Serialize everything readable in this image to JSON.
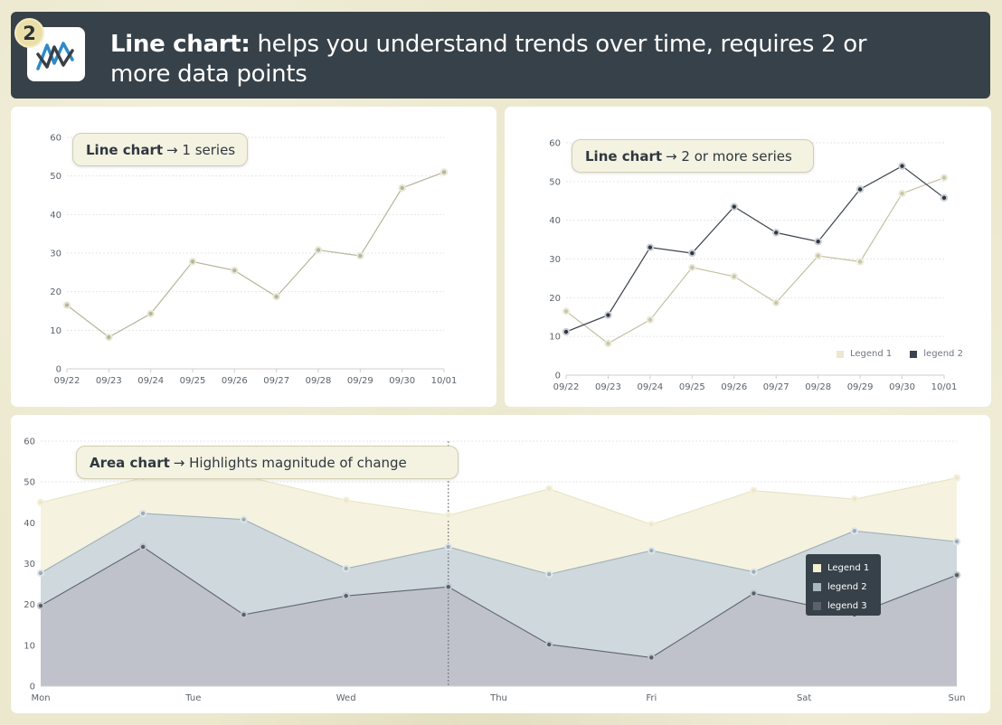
{
  "header": {
    "badge": "2",
    "title_bold": "Line chart:",
    "title_rest": " helps you understand trends over time, requires 2 or more data points"
  },
  "colors": {
    "series1": "#b6b59a",
    "series2": "#3b434c",
    "area1": "#f5f2df",
    "area2": "#cfd8dd",
    "area3": "#bfc2cb"
  },
  "chart_data": [
    {
      "type": "line",
      "label_bold": "Line chart",
      "label_rest": "→ 1 series",
      "categories": [
        "09/22",
        "09/23",
        "09/24",
        "09/25",
        "09/26",
        "09/27",
        "09/28",
        "09/29",
        "09/30",
        "10/01"
      ],
      "series": [
        {
          "values": [
            16.5,
            8.2,
            14.3,
            27.8,
            25.5,
            18.7,
            30.8,
            29.3,
            46.9,
            51.0
          ]
        }
      ],
      "ylim": [
        0,
        60
      ],
      "yticks": [
        0,
        10,
        20,
        30,
        40,
        50,
        60
      ],
      "grid": true
    },
    {
      "type": "line",
      "label_bold": "Line chart",
      "label_rest": "→ 2 or more series",
      "categories": [
        "09/22",
        "09/23",
        "09/24",
        "09/25",
        "09/26",
        "09/27",
        "09/28",
        "09/29",
        "09/30",
        "10/01"
      ],
      "series": [
        {
          "name": "Legend 1",
          "values": [
            16.5,
            8.2,
            14.3,
            27.8,
            25.5,
            18.7,
            30.8,
            29.3,
            46.9,
            51.0
          ]
        },
        {
          "name": "legend 2",
          "values": [
            11.2,
            15.5,
            33.0,
            31.5,
            43.5,
            36.8,
            34.5,
            48.0,
            54.0,
            45.8
          ]
        }
      ],
      "ylim": [
        0,
        60
      ],
      "yticks": [
        0,
        10,
        20,
        30,
        40,
        50,
        60
      ],
      "legend": "bottom-right",
      "grid": true
    },
    {
      "type": "area",
      "label_bold": "Area chart",
      "label_rest": "→ Highlights magnitude of change",
      "categories": [
        "Mon",
        "Tue",
        "Wed",
        "Thu",
        "Fri",
        "Sat",
        "Sun"
      ],
      "x": [
        0,
        0.67,
        1.33,
        2,
        2.67,
        3.33,
        4,
        4.67,
        5.33,
        6
      ],
      "series": [
        {
          "name": "Legend 1",
          "values": [
            45.0,
            51.0,
            51.5,
            45.5,
            41.8,
            48.3,
            39.6,
            47.9,
            45.8,
            51.0
          ]
        },
        {
          "name": "legend 2",
          "values": [
            27.7,
            42.3,
            40.8,
            28.8,
            34.1,
            27.4,
            33.2,
            28.0,
            38.0,
            35.4
          ]
        },
        {
          "name": "legend 3",
          "values": [
            19.7,
            34.1,
            17.5,
            22.1,
            24.3,
            10.2,
            7.0,
            22.7,
            17.5,
            27.2
          ]
        }
      ],
      "ylim": [
        0,
        60
      ],
      "yticks": [
        0,
        10,
        20,
        30,
        40,
        50,
        60
      ],
      "hover_x": 2.67,
      "legend": "tooltip",
      "grid": true
    }
  ]
}
